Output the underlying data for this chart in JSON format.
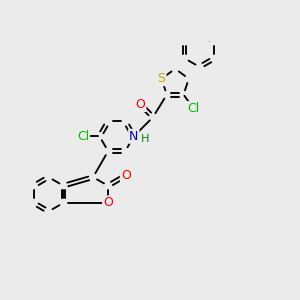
{
  "background_color": "#ebebeb",
  "bond_color": "#000000",
  "atom_colors": {
    "O": "#ff0000",
    "N": "#0000cc",
    "S": "#bbaa00",
    "Cl_green": "#00bb00",
    "H": "#008800",
    "C": "#000000"
  },
  "figsize": [
    3.0,
    3.0
  ],
  "dpi": 100,
  "lw": 1.35,
  "fs": 9.0,
  "r6": 0.6,
  "r5": 0.5
}
